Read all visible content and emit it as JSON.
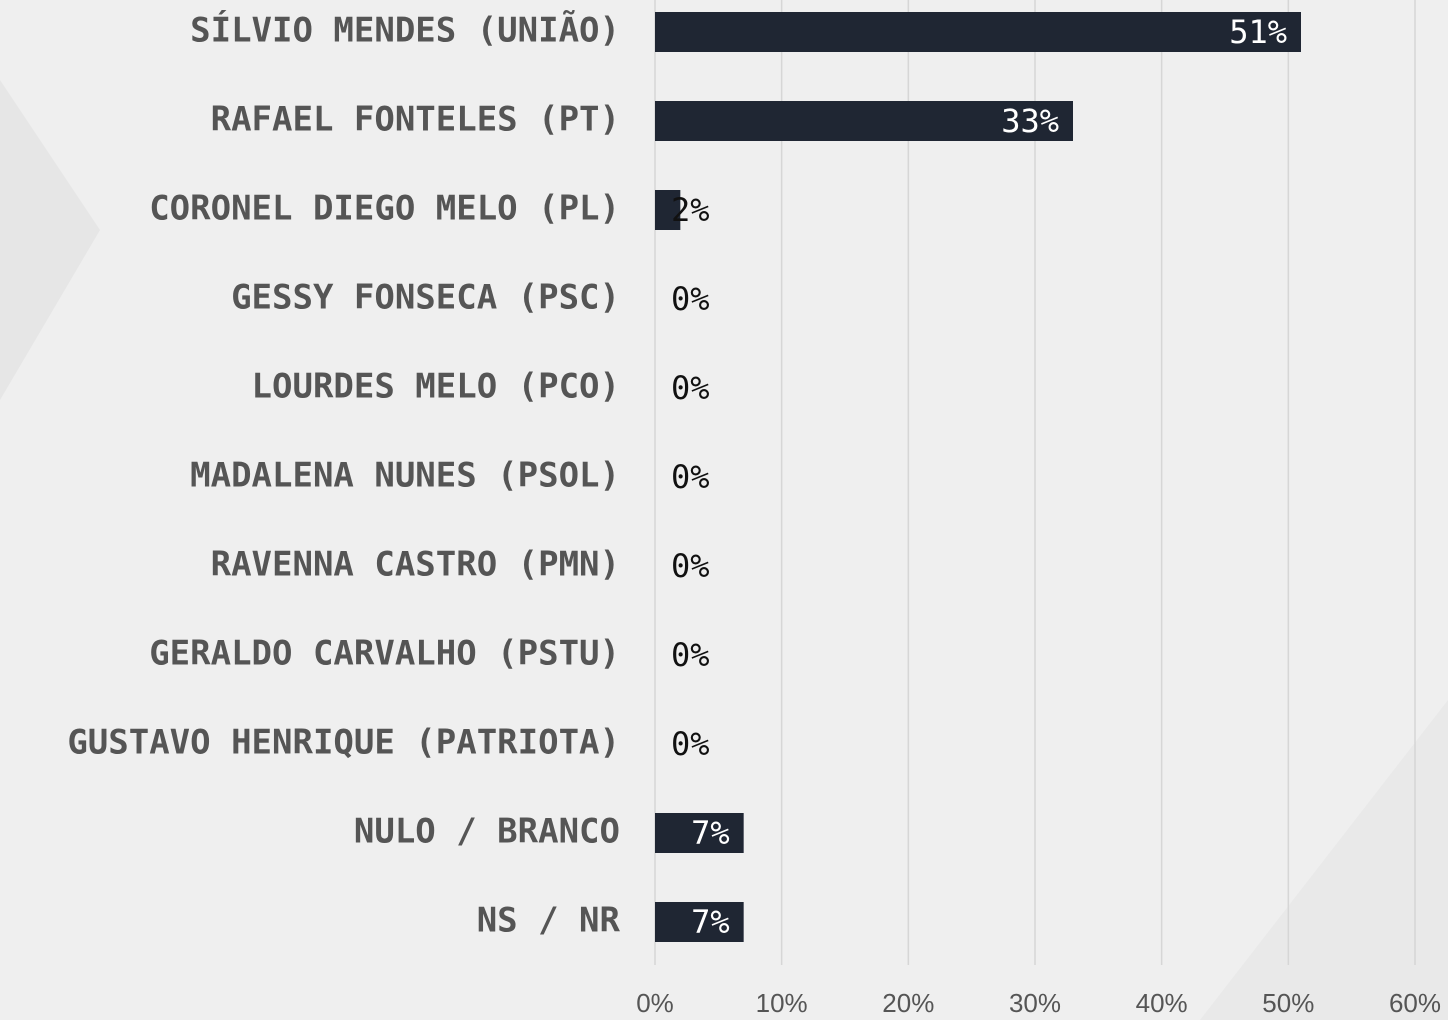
{
  "chart_data": {
    "type": "bar",
    "orientation": "horizontal",
    "categories": [
      "SÍLVIO MENDES (UNIÃO)",
      "RAFAEL FONTELES (PT)",
      "CORONEL DIEGO MELO (PL)",
      "GESSY FONSECA (PSC)",
      "LOURDES MELO (PCO)",
      "MADALENA NUNES (PSOL)",
      "RAVENNA CASTRO (PMN)",
      "GERALDO CARVALHO (PSTU)",
      "GUSTAVO HENRIQUE (PATRIOTA)",
      "NULO / BRANCO",
      "NS / NR"
    ],
    "values": [
      51,
      33,
      2,
      0,
      0,
      0,
      0,
      0,
      0,
      7,
      7
    ],
    "value_labels": [
      "51%",
      "33%",
      "2%",
      "0%",
      "0%",
      "0%",
      "0%",
      "0%",
      "0%",
      "7%",
      "7%"
    ],
    "color": "#1f2633",
    "xlim": [
      0,
      60
    ],
    "xticks": [
      {
        "value": 0,
        "label": "0%"
      },
      {
        "value": 10,
        "label": "10%"
      },
      {
        "value": 20,
        "label": "20%"
      },
      {
        "value": 30,
        "label": "30%"
      },
      {
        "value": 40,
        "label": "40%"
      },
      {
        "value": 50,
        "label": "50%"
      },
      {
        "value": 60,
        "label": "60%"
      }
    ],
    "grid": true
  }
}
